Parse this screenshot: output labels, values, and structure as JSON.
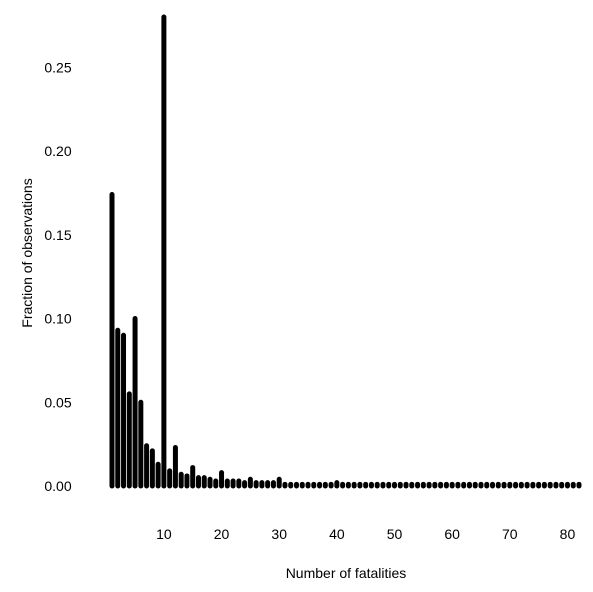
{
  "chart_data": {
    "type": "bar",
    "title": "",
    "xlabel": "Number of fatalities",
    "ylabel": "Fraction of observations",
    "xlim": [
      1,
      82
    ],
    "ylim": [
      0,
      0.28
    ],
    "xticks": [
      10,
      20,
      30,
      40,
      50,
      60,
      70,
      80
    ],
    "yticks": [
      0,
      0.05,
      0.1,
      0.15,
      0.2,
      0.25
    ],
    "ytick_labels": [
      "0.00",
      "0.05",
      "0.10",
      "0.15",
      "0.20",
      "0.25"
    ],
    "grid": false,
    "x": [
      1,
      2,
      3,
      4,
      5,
      6,
      7,
      8,
      9,
      10,
      11,
      12,
      13,
      14,
      15,
      16,
      17,
      18,
      19,
      20,
      21,
      22,
      23,
      24,
      25,
      26,
      27,
      28,
      29,
      30,
      31,
      32,
      33,
      34,
      35,
      36,
      37,
      38,
      39,
      40,
      41,
      42,
      43,
      44,
      45,
      46,
      47,
      48,
      49,
      50,
      51,
      52,
      53,
      54,
      55,
      56,
      57,
      58,
      59,
      60,
      61,
      62,
      63,
      64,
      65,
      66,
      67,
      68,
      69,
      70,
      71,
      72,
      73,
      74,
      75,
      76,
      77,
      78,
      79,
      80,
      81,
      82
    ],
    "values": [
      0.174,
      0.093,
      0.09,
      0.055,
      0.1,
      0.05,
      0.024,
      0.021,
      0.013,
      0.28,
      0.009,
      0.023,
      0.007,
      0.006,
      0.011,
      0.005,
      0.005,
      0.004,
      0.003,
      0.008,
      0.003,
      0.003,
      0.003,
      0.002,
      0.004,
      0.002,
      0.002,
      0.002,
      0.002,
      0.004,
      0.001,
      0.001,
      0.001,
      0.001,
      0.001,
      0.001,
      0.001,
      0.001,
      0.001,
      0.002,
      0.001,
      0.001,
      0.001,
      0.001,
      0.001,
      0.001,
      0.001,
      0.001,
      0.001,
      0.001,
      0.001,
      0.001,
      0.001,
      0.001,
      0.001,
      0.001,
      0.001,
      0.001,
      0.001,
      0.001,
      0.001,
      0.001,
      0.001,
      0.001,
      0.001,
      0.001,
      0.001,
      0.001,
      0.001,
      0.001,
      0.001,
      0.001,
      0.001,
      0.001,
      0.001,
      0.001,
      0.001,
      0.001,
      0.001,
      0.001,
      0.001,
      0.001
    ]
  }
}
